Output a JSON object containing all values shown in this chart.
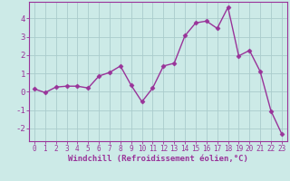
{
  "x": [
    0,
    1,
    2,
    3,
    4,
    5,
    6,
    7,
    8,
    9,
    10,
    11,
    12,
    13,
    14,
    15,
    16,
    17,
    18,
    19,
    20,
    21,
    22,
    23
  ],
  "y": [
    0.15,
    -0.05,
    0.25,
    0.3,
    0.3,
    0.2,
    0.85,
    1.05,
    1.4,
    0.35,
    -0.55,
    0.2,
    1.4,
    1.55,
    3.05,
    3.75,
    3.85,
    3.45,
    4.6,
    1.95,
    2.25,
    1.1,
    -1.05,
    -2.3
  ],
  "line_color": "#993399",
  "marker": "D",
  "marker_size": 2.5,
  "linewidth": 1.0,
  "bg_color": "#cceae7",
  "grid_color": "#aacccc",
  "xlim": [
    -0.5,
    23.5
  ],
  "ylim": [
    -2.7,
    4.9
  ],
  "yticks": [
    -2,
    -1,
    0,
    1,
    2,
    3,
    4
  ],
  "xticks": [
    0,
    1,
    2,
    3,
    4,
    5,
    6,
    7,
    8,
    9,
    10,
    11,
    12,
    13,
    14,
    15,
    16,
    17,
    18,
    19,
    20,
    21,
    22,
    23
  ],
  "tick_color": "#993399",
  "tick_labelsize": 5.5,
  "ytick_labelsize": 6.5,
  "xlabel": "Windchill (Refroidissement éolien,°C)",
  "xlabel_fontsize": 6.5,
  "xlabel_color": "#993399",
  "spine_color": "#993399"
}
